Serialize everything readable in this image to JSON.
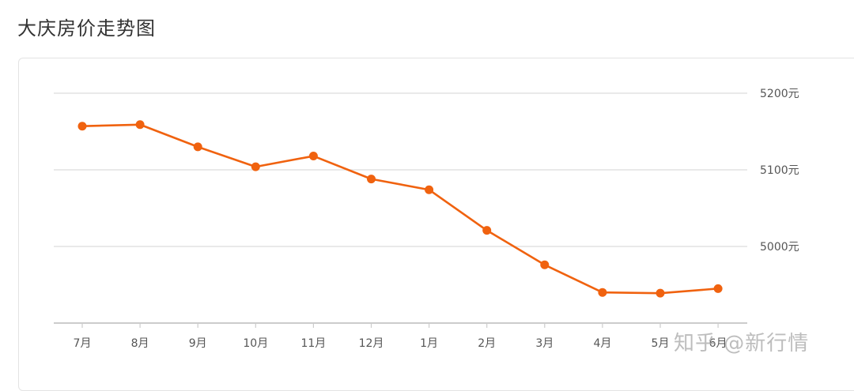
{
  "page": {
    "title": "大庆房价走势图",
    "watermark": "知乎 @新行情"
  },
  "colors": {
    "line": "#f0620f",
    "grid": "#dcdcdc",
    "axis_text": "#555555"
  },
  "chart_data": {
    "type": "line",
    "categories": [
      "7月",
      "8月",
      "9月",
      "10月",
      "11月",
      "12月",
      "1月",
      "2月",
      "3月",
      "4月",
      "5月",
      "6月"
    ],
    "series": [
      {
        "values": [
          5157,
          5159,
          5130,
          5104,
          5118,
          5088,
          5074,
          5021,
          4976,
          4940,
          4939,
          4945
        ]
      }
    ],
    "y_ticks": [
      5000,
      5100,
      5200
    ],
    "y_tick_labels": [
      "5000元",
      "5100元",
      "5200元"
    ],
    "ylim": [
      4900,
      5200
    ],
    "y_axis_position": "right",
    "grid": true
  }
}
